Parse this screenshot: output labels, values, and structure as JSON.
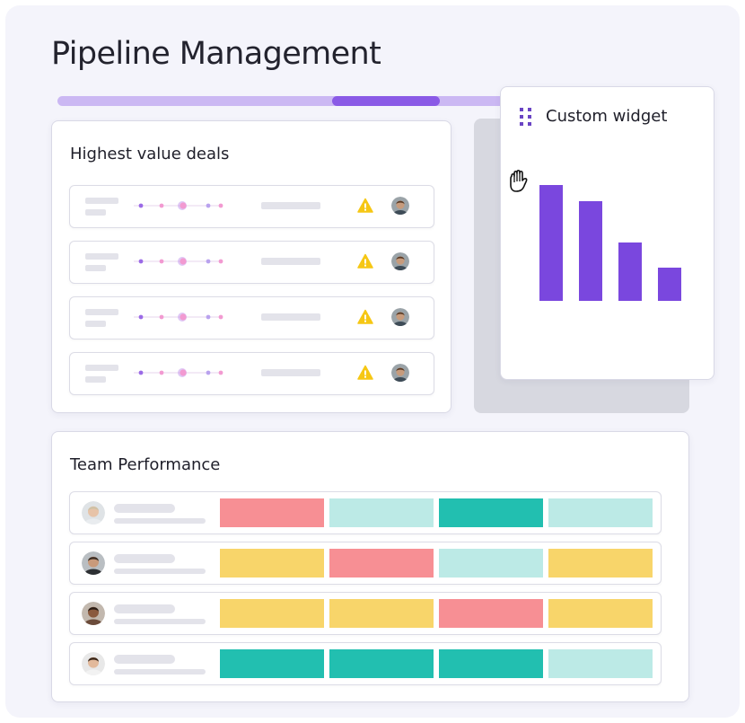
{
  "page": {
    "title": "Pipeline Management"
  },
  "deals_card": {
    "title": "Highest value deals",
    "rows": [
      {
        "status_icon": "warning-icon",
        "avatar": "avatar-man-brown-hair"
      },
      {
        "status_icon": "warning-icon",
        "avatar": "avatar-man-brown-hair"
      },
      {
        "status_icon": "warning-icon",
        "avatar": "avatar-man-brown-hair"
      },
      {
        "status_icon": "warning-icon",
        "avatar": "avatar-man-brown-hair"
      }
    ]
  },
  "widget": {
    "title": "Custom widget",
    "drag_icon": "grip-dots-icon",
    "cursor_icon": "grab-hand-icon",
    "chart_data": {
      "type": "bar",
      "categories": [
        "",
        "",
        "",
        ""
      ],
      "values": [
        100,
        86,
        50,
        29
      ],
      "color": "#7a47de"
    }
  },
  "team_card": {
    "title": "Team Performance",
    "colors": {
      "red": "#f78f94",
      "teal": "#22bfb0",
      "light_teal": "#bceae6",
      "yellow": "#f8d56a"
    },
    "rows": [
      {
        "avatar": "avatar-woman-blonde",
        "cells": [
          "red",
          "light_teal",
          "teal",
          "light_teal"
        ]
      },
      {
        "avatar": "avatar-man-beard",
        "cells": [
          "yellow",
          "red",
          "light_teal",
          "yellow"
        ]
      },
      {
        "avatar": "avatar-man-dark",
        "cells": [
          "yellow",
          "yellow",
          "red",
          "yellow"
        ]
      },
      {
        "avatar": "avatar-woman-dark-hair",
        "cells": [
          "teal",
          "teal",
          "teal",
          "light_teal"
        ]
      }
    ]
  }
}
